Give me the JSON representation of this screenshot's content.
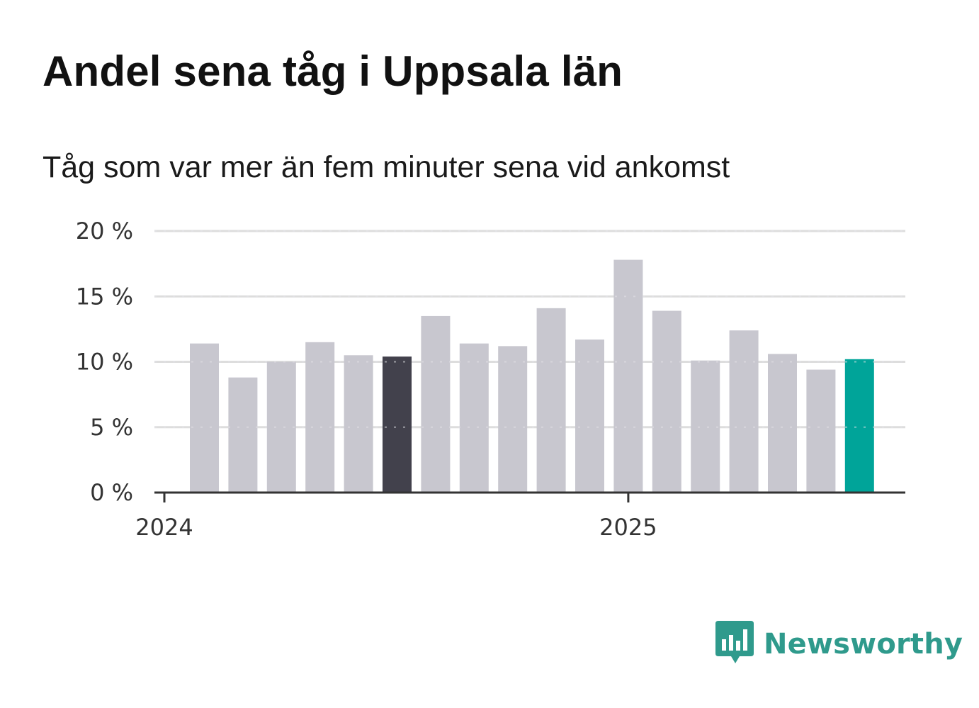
{
  "title": "Andel sena tåg i Uppsala län",
  "subtitle": "Tåg som var mer än fem minuter sena vid ankomst",
  "brand": {
    "name": "Newsworthy",
    "icon": "bar-chart-speech-bubble-icon"
  },
  "colors": {
    "bar": "#c8c7cf",
    "highlight_dark": "#42414c",
    "highlight_accent": "#00a499",
    "brand": "#2f9a8c",
    "grid": "#dddddd",
    "axis": "#333333"
  },
  "chart_data": {
    "type": "bar",
    "x": [
      "2024-02",
      "2024-03",
      "2024-04",
      "2024-05",
      "2024-06",
      "2024-07",
      "2024-08",
      "2024-09",
      "2024-10",
      "2024-11",
      "2024-12",
      "2025-01",
      "2025-02",
      "2025-03",
      "2025-04",
      "2025-05",
      "2025-06",
      "2025-07"
    ],
    "values": [
      11.4,
      8.8,
      10.0,
      11.5,
      10.5,
      10.4,
      13.5,
      11.4,
      11.2,
      14.1,
      11.7,
      17.8,
      13.9,
      10.1,
      12.4,
      10.6,
      9.4,
      10.2
    ],
    "highlight_dark_index": 5,
    "highlight_accent_index": 17,
    "ylim": [
      0,
      20
    ],
    "yticks": [
      0,
      5,
      10,
      15,
      20
    ],
    "ytick_labels": [
      "0 %",
      "5 %",
      "10 %",
      "15 %",
      "20 %"
    ],
    "xtick_labels": [
      "2024",
      "2025"
    ],
    "grid": true,
    "legend": false
  }
}
